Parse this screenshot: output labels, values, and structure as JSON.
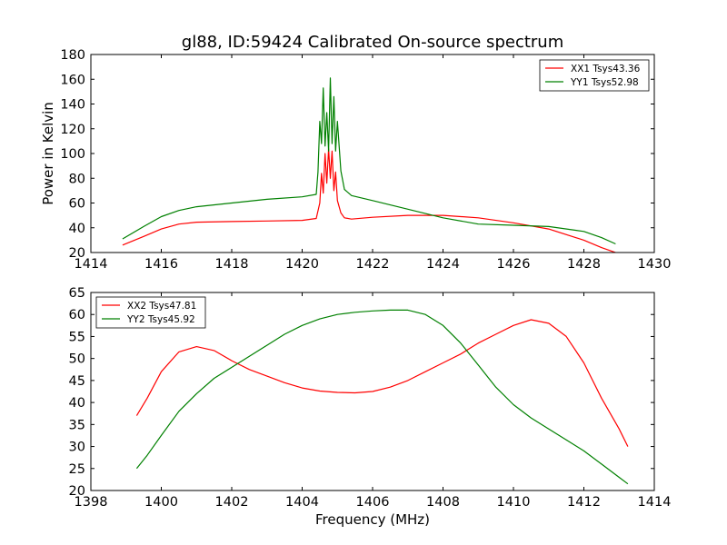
{
  "chart_data": [
    {
      "type": "line",
      "title": "gl88, ID:59424 Calibrated On-source spectrum",
      "xlabel": "",
      "ylabel": "Power in Kelvin",
      "xlim": [
        1414,
        1430
      ],
      "ylim": [
        20,
        180
      ],
      "xticks": [
        "1414",
        "1416",
        "1418",
        "1420",
        "1422",
        "1424",
        "1426",
        "1428",
        "1430"
      ],
      "yticks": [
        "20",
        "40",
        "60",
        "80",
        "100",
        "120",
        "140",
        "160",
        "180"
      ],
      "legend_position": "top-right",
      "grid": false,
      "series": [
        {
          "name": "XX1 Tsys43.36",
          "color": "#ff0000",
          "x": [
            1414.9,
            1415.5,
            1416.0,
            1416.5,
            1417.0,
            1418.0,
            1419.0,
            1420.0,
            1420.4,
            1420.5,
            1420.55,
            1420.6,
            1420.65,
            1420.7,
            1420.75,
            1420.8,
            1420.85,
            1420.9,
            1420.95,
            1421.0,
            1421.1,
            1421.2,
            1421.4,
            1422.0,
            1423.0,
            1424.0,
            1425.0,
            1426.0,
            1427.0,
            1428.0,
            1428.5,
            1429.0
          ],
          "y": [
            26,
            33,
            39,
            43,
            44.5,
            45,
            45.5,
            46,
            47.5,
            60,
            84,
            68,
            100,
            76,
            104,
            80,
            102,
            70,
            85,
            62,
            52,
            48,
            47,
            48.5,
            50,
            50,
            48,
            44,
            39,
            30,
            24,
            19
          ]
        },
        {
          "name": "YY1 Tsys52.98",
          "color": "#008000",
          "x": [
            1414.9,
            1415.5,
            1416.0,
            1416.5,
            1417.0,
            1418.0,
            1419.0,
            1420.0,
            1420.4,
            1420.45,
            1420.5,
            1420.55,
            1420.6,
            1420.65,
            1420.7,
            1420.75,
            1420.8,
            1420.85,
            1420.9,
            1420.95,
            1421.0,
            1421.1,
            1421.2,
            1421.4,
            1422.0,
            1423.0,
            1424.0,
            1425.0,
            1426.0,
            1427.0,
            1428.0,
            1428.5,
            1428.9
          ],
          "y": [
            31,
            41,
            49,
            54,
            57,
            60,
            63,
            65,
            67,
            85,
            126,
            108,
            153,
            106,
            133,
            102,
            161,
            108,
            146,
            102,
            126,
            86,
            71,
            66,
            62,
            55,
            48,
            43,
            42,
            41,
            37,
            32,
            27
          ]
        }
      ]
    },
    {
      "type": "line",
      "title": "",
      "xlabel": "Frequency (MHz)",
      "ylabel": "",
      "xlim": [
        1398,
        1414
      ],
      "ylim": [
        20,
        65
      ],
      "xticks": [
        "1398",
        "1400",
        "1402",
        "1404",
        "1406",
        "1408",
        "1410",
        "1412",
        "1414"
      ],
      "yticks": [
        "20",
        "25",
        "30",
        "35",
        "40",
        "45",
        "50",
        "55",
        "60",
        "65"
      ],
      "legend_position": "top-left",
      "grid": false,
      "series": [
        {
          "name": "XX2 Tsys47.81",
          "color": "#ff0000",
          "x": [
            1399.3,
            1399.6,
            1400.0,
            1400.5,
            1401.0,
            1401.5,
            1402.0,
            1402.5,
            1403.0,
            1403.5,
            1404.0,
            1404.5,
            1405.0,
            1405.5,
            1406.0,
            1406.5,
            1407.0,
            1407.5,
            1408.0,
            1408.5,
            1409.0,
            1409.5,
            1410.0,
            1410.5,
            1411.0,
            1411.5,
            1412.0,
            1412.5,
            1413.0,
            1413.25
          ],
          "y": [
            37,
            41,
            47,
            51.5,
            52.7,
            51.8,
            49.5,
            47.5,
            46,
            44.5,
            43.3,
            42.6,
            42.3,
            42.2,
            42.5,
            43.5,
            45,
            47,
            49,
            51,
            53.5,
            55.5,
            57.5,
            58.8,
            58,
            55,
            49,
            41,
            34,
            30
          ]
        },
        {
          "name": "YY2 Tsys45.92",
          "color": "#008000",
          "x": [
            1399.3,
            1399.6,
            1400.0,
            1400.5,
            1401.0,
            1401.5,
            1402.0,
            1402.5,
            1403.0,
            1403.5,
            1404.0,
            1404.5,
            1405.0,
            1405.5,
            1406.0,
            1406.5,
            1407.0,
            1407.5,
            1408.0,
            1408.5,
            1409.0,
            1409.5,
            1410.0,
            1410.5,
            1411.0,
            1411.5,
            1412.0,
            1412.5,
            1413.0,
            1413.25
          ],
          "y": [
            25,
            28,
            32.5,
            38,
            42,
            45.5,
            48,
            50.5,
            53,
            55.5,
            57.5,
            59,
            60,
            60.5,
            60.8,
            61,
            61,
            60,
            57.5,
            53.5,
            48.5,
            43.5,
            39.5,
            36.5,
            34,
            31.5,
            29,
            26,
            23,
            21.5
          ]
        }
      ]
    }
  ]
}
